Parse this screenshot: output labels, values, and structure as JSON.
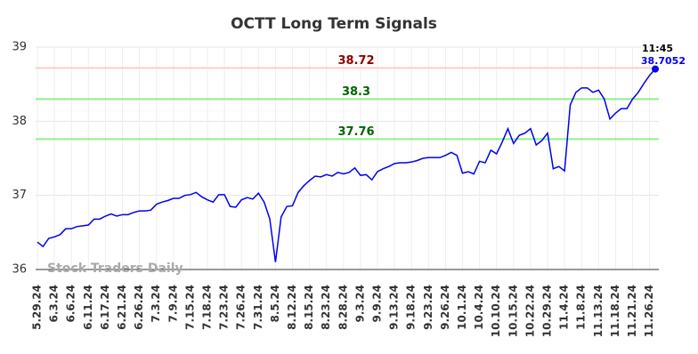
{
  "chart_data": {
    "type": "line",
    "title": "OCTT Long Term Signals",
    "watermark": "Stock Traders Daily",
    "time_label": "11:45",
    "color": "#0000ee",
    "x": [
      "5.29.24",
      null,
      null,
      "6.3.24",
      null,
      null,
      "6.6.24",
      null,
      null,
      "6.11.24",
      null,
      null,
      "6.17.24",
      null,
      null,
      "6.21.24",
      null,
      null,
      "6.26.24",
      null,
      null,
      "7.3.24",
      null,
      null,
      "7.9.24",
      null,
      null,
      "7.15.24",
      null,
      null,
      "7.18.24",
      null,
      null,
      "7.23.24",
      null,
      null,
      "7.26.24",
      null,
      null,
      "7.31.24",
      null,
      null,
      "8.5.24",
      null,
      null,
      "8.12.24",
      null,
      null,
      "8.15.24",
      null,
      null,
      "8.23.24",
      null,
      null,
      "8.28.24",
      null,
      null,
      "9.3.24",
      null,
      null,
      "9.9.24",
      null,
      null,
      "9.13.24",
      null,
      null,
      "9.18.24",
      null,
      null,
      "9.23.24",
      null,
      null,
      "9.26.24",
      null,
      null,
      "10.1.24",
      null,
      null,
      "10.4.24",
      null,
      null,
      "10.10.24",
      null,
      null,
      "10.15.24",
      null,
      null,
      "10.22.24",
      null,
      null,
      "10.29.24",
      null,
      null,
      "11.4.24",
      null,
      null,
      "11.8.24",
      null,
      null,
      "11.13.24",
      null,
      null,
      "11.18.24",
      null,
      null,
      "11.21.24",
      null,
      null,
      "11.26.24",
      null
    ],
    "values": [
      36.37,
      36.31,
      36.42,
      36.44,
      36.47,
      36.55,
      36.55,
      36.58,
      36.59,
      36.6,
      36.68,
      36.68,
      36.72,
      36.75,
      36.72,
      36.74,
      36.74,
      36.77,
      36.79,
      36.79,
      36.8,
      36.88,
      36.91,
      36.93,
      36.96,
      36.96,
      37.0,
      37.01,
      37.04,
      36.98,
      36.94,
      36.91,
      37.01,
      37.01,
      36.85,
      36.84,
      36.94,
      36.97,
      36.95,
      37.03,
      36.91,
      36.68,
      36.1,
      36.71,
      36.85,
      36.86,
      37.04,
      37.13,
      37.2,
      37.26,
      37.25,
      37.28,
      37.26,
      37.31,
      37.29,
      37.31,
      37.37,
      37.27,
      37.28,
      37.21,
      37.32,
      37.36,
      37.39,
      37.43,
      37.44,
      37.44,
      37.45,
      37.47,
      37.5,
      37.51,
      37.51,
      37.51,
      37.54,
      37.58,
      37.54,
      37.3,
      37.32,
      37.29,
      37.46,
      37.44,
      37.61,
      37.56,
      37.72,
      37.9,
      37.7,
      37.81,
      37.84,
      37.9,
      37.68,
      37.74,
      37.84,
      37.36,
      37.39,
      37.33,
      38.22,
      38.39,
      38.45,
      38.45,
      38.39,
      38.42,
      38.3,
      38.03,
      38.11,
      38.17,
      38.17,
      38.3,
      38.39,
      38.51,
      38.62,
      38.7052
    ],
    "ylim": [
      36,
      39
    ],
    "yticks": [
      36,
      37,
      38,
      39
    ],
    "grid": true,
    "hlines": [
      {
        "value": 38.72,
        "color": "#ffcccc",
        "label_color": "#8b0000"
      },
      {
        "value": 38.3,
        "color": "#90ee90",
        "label_color": "#006400"
      },
      {
        "value": 37.76,
        "color": "#90ee90",
        "label_color": "#006400"
      }
    ]
  }
}
